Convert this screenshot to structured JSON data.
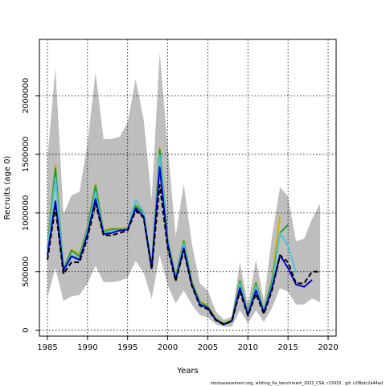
{
  "chart_data": {
    "type": "line",
    "xlabel": "Years",
    "ylabel": "Recruits (age 0)",
    "xlim": [
      1984,
      2021
    ],
    "ylim": [
      -50000,
      2480000
    ],
    "xticks": [
      1985,
      1990,
      1995,
      2000,
      2005,
      2010,
      2015,
      2020
    ],
    "yticks": [
      0,
      500000,
      1000000,
      1500000,
      2000000
    ],
    "grid": true,
    "footer": "stockassessment.org,  whiting_6a_benchmark_2021_CSA, r13933 ,  git: c28bdc2a44ad",
    "confidence_band": {
      "x": [
        1985,
        1986,
        1987,
        1988,
        1989,
        1990,
        1991,
        1992,
        1993,
        1994,
        1995,
        1996,
        1997,
        1998,
        1999,
        2000,
        2001,
        2002,
        2003,
        2004,
        2005,
        2006,
        2007,
        2008,
        2009,
        2010,
        2011,
        2012,
        2013,
        2014,
        2015,
        2016,
        2017,
        2018,
        2019
      ],
      "lower": [
        280000,
        530000,
        250000,
        290000,
        300000,
        400000,
        550000,
        410000,
        410000,
        420000,
        450000,
        590000,
        490000,
        270000,
        640000,
        380000,
        230000,
        340000,
        220000,
        130000,
        110000,
        50000,
        30000,
        30000,
        170000,
        60000,
        170000,
        70000,
        190000,
        360000,
        330000,
        220000,
        220000,
        270000,
        240000
      ],
      "upper": [
        1460000,
        2240000,
        990000,
        1150000,
        1180000,
        1590000,
        2200000,
        1630000,
        1630000,
        1650000,
        1770000,
        2140000,
        1800000,
        1110000,
        2370000,
        1560000,
        800000,
        1250000,
        740000,
        400000,
        340000,
        160000,
        90000,
        120000,
        580000,
        220000,
        600000,
        250000,
        800000,
        1220000,
        1140000,
        760000,
        780000,
        950000,
        1080000
      ]
    },
    "series": [
      {
        "color": "#d4b000",
        "x": [
          1985,
          1986,
          1987,
          1988,
          1989,
          1990,
          1991,
          1992,
          1993,
          1994,
          1995,
          1996,
          1997,
          1998,
          1999,
          2000,
          2001,
          2002,
          2003,
          2004,
          2005,
          2006,
          2007,
          2008,
          2009,
          2010,
          2011,
          2012,
          2013,
          2014
        ],
        "values": [
          720000,
          1410000,
          510000,
          690000,
          650000,
          880000,
          1250000,
          850000,
          870000,
          870000,
          880000,
          1070000,
          1010000,
          540000,
          1560000,
          780000,
          460000,
          770000,
          420000,
          250000,
          210000,
          100000,
          60000,
          90000,
          430000,
          150000,
          410000,
          170000,
          430000,
          980000
        ]
      },
      {
        "color": "#1a9e3a",
        "x": [
          1985,
          1986,
          1987,
          1988,
          1989,
          1990,
          1991,
          1992,
          1993,
          1994,
          1995,
          1996,
          1997,
          1998,
          1999,
          2000,
          2001,
          2002,
          2003,
          2004,
          2005,
          2006,
          2007,
          2008,
          2009,
          2010,
          2011,
          2012,
          2013,
          2014,
          2015
        ],
        "values": [
          700000,
          1380000,
          520000,
          680000,
          630000,
          870000,
          1230000,
          840000,
          860000,
          860000,
          860000,
          1060000,
          1000000,
          530000,
          1540000,
          770000,
          450000,
          760000,
          410000,
          240000,
          200000,
          95000,
          55000,
          85000,
          420000,
          145000,
          400000,
          165000,
          420000,
          830000,
          900000
        ]
      },
      {
        "color": "#4fc3d8",
        "x": [
          1985,
          1986,
          1987,
          1988,
          1989,
          1990,
          1991,
          1992,
          1993,
          1994,
          1995,
          1996,
          1997,
          1998,
          1999,
          2000,
          2001,
          2002,
          2003,
          2004,
          2005,
          2006,
          2007,
          2008,
          2009,
          2010,
          2011,
          2012,
          2013,
          2014,
          2015,
          2016
        ],
        "values": [
          690000,
          1300000,
          520000,
          640000,
          610000,
          850000,
          1180000,
          830000,
          850000,
          850000,
          870000,
          1110000,
          1010000,
          540000,
          1490000,
          760000,
          440000,
          740000,
          400000,
          230000,
          190000,
          90000,
          50000,
          80000,
          400000,
          140000,
          380000,
          160000,
          380000,
          830000,
          720000,
          490000
        ]
      },
      {
        "color": "#0000cc",
        "x": [
          1985,
          1986,
          1987,
          1988,
          1989,
          1990,
          1991,
          1992,
          1993,
          1994,
          1995,
          1996,
          1997,
          1998,
          1999,
          2000,
          2001,
          2002,
          2003,
          2004,
          2005,
          2006,
          2007,
          2008,
          2009,
          2010,
          2011,
          2012,
          2013,
          2014,
          2015,
          2016,
          2017,
          2018
        ],
        "values": [
          640000,
          1100000,
          510000,
          630000,
          600000,
          820000,
          1120000,
          820000,
          830000,
          850000,
          860000,
          1040000,
          970000,
          530000,
          1390000,
          730000,
          430000,
          700000,
          390000,
          220000,
          190000,
          90000,
          50000,
          80000,
          360000,
          130000,
          340000,
          150000,
          360000,
          640000,
          530000,
          390000,
          370000,
          430000
        ]
      },
      {
        "color": "#000000",
        "dashed": true,
        "x": [
          1985,
          1986,
          1987,
          1988,
          1989,
          1990,
          1991,
          1992,
          1993,
          1994,
          1995,
          1996,
          1997,
          1998,
          1999,
          2000,
          2001,
          2002,
          2003,
          2004,
          2005,
          2006,
          2007,
          2008,
          2009,
          2010,
          2011,
          2012,
          2013,
          2014,
          2015,
          2016,
          2017,
          2018,
          2019
        ],
        "values": [
          600000,
          1050000,
          480000,
          580000,
          580000,
          790000,
          1080000,
          810000,
          810000,
          830000,
          850000,
          1020000,
          960000,
          520000,
          1240000,
          700000,
          420000,
          680000,
          380000,
          210000,
          180000,
          85000,
          48000,
          78000,
          330000,
          125000,
          310000,
          140000,
          340000,
          640000,
          580000,
          400000,
          400000,
          500000,
          500000
        ]
      }
    ]
  }
}
